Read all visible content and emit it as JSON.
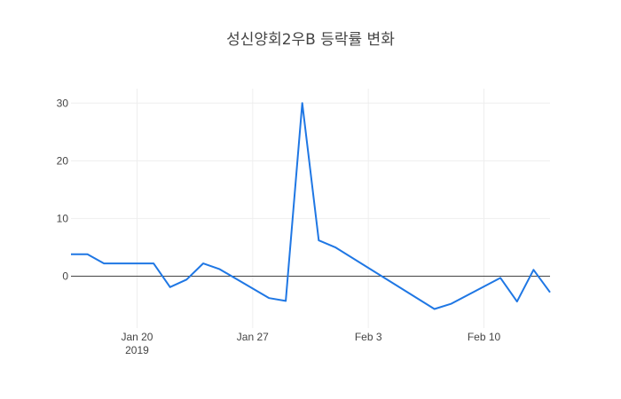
{
  "chart_data": {
    "type": "line",
    "title": "성신양회2우B 등락률 변화",
    "xlabel": "",
    "ylabel": "",
    "x_ticks": [
      {
        "date": "2019-01-20",
        "label": "Jan 20",
        "sublabel": "2019"
      },
      {
        "date": "2019-01-27",
        "label": "Jan 27",
        "sublabel": ""
      },
      {
        "date": "2019-02-03",
        "label": "Feb 3",
        "sublabel": ""
      },
      {
        "date": "2019-02-10",
        "label": "Feb 10",
        "sublabel": ""
      }
    ],
    "y_ticks": [
      0,
      10,
      20,
      30
    ],
    "ylim": [
      -9,
      32.5
    ],
    "xlim": [
      "2019-01-16",
      "2019-02-14"
    ],
    "grid": true,
    "line_color": "#1f77e4",
    "series": [
      {
        "x": [
          "2019-01-16",
          "2019-01-17",
          "2019-01-18",
          "2019-01-21",
          "2019-01-22",
          "2019-01-23",
          "2019-01-24",
          "2019-01-25",
          "2019-01-28",
          "2019-01-29",
          "2019-01-30",
          "2019-01-31",
          "2019-02-01",
          "2019-02-07",
          "2019-02-08",
          "2019-02-11",
          "2019-02-12",
          "2019-02-13",
          "2019-02-14"
        ],
        "y": [
          3.8,
          3.8,
          2.2,
          2.2,
          -1.9,
          -0.6,
          2.2,
          1.2,
          -3.8,
          -4.3,
          30.0,
          6.2,
          5.0,
          -5.7,
          -4.8,
          -0.3,
          -4.4,
          1.1,
          -2.8
        ]
      }
    ]
  }
}
